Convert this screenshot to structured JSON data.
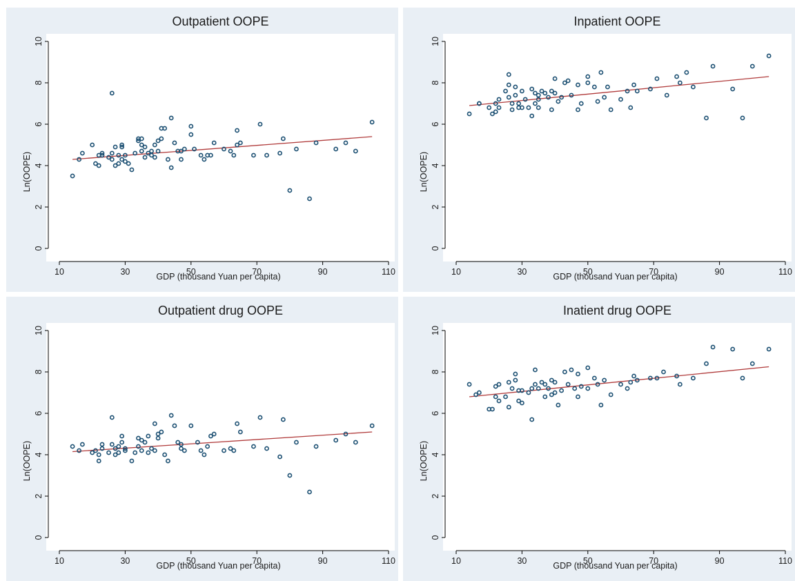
{
  "colors": {
    "panel_background": "#e9eff5",
    "plot_background": "#ffffff",
    "marker": "#1b4f72",
    "fit_line": "#b03a3a"
  },
  "chart_data": [
    {
      "type": "scatter",
      "title": "Outpatient OOPE",
      "xlabel": "GDP (thousand Yuan per capita)",
      "ylabel": "Ln(OOPE)",
      "xlim": [
        10,
        110
      ],
      "ylim": [
        0,
        10
      ],
      "xticks": [
        10,
        30,
        50,
        70,
        90,
        110
      ],
      "yticks": [
        0,
        2,
        4,
        6,
        8,
        10
      ],
      "grid": false,
      "fit_line": {
        "x": [
          14,
          105
        ],
        "y": [
          4.3,
          5.4
        ]
      },
      "points": [
        [
          14,
          3.5
        ],
        [
          16,
          4.3
        ],
        [
          17,
          4.6
        ],
        [
          20,
          5.0
        ],
        [
          21,
          4.1
        ],
        [
          22,
          4.0
        ],
        [
          22,
          4.5
        ],
        [
          23,
          4.5
        ],
        [
          23,
          4.6
        ],
        [
          25,
          4.4
        ],
        [
          26,
          4.3
        ],
        [
          26,
          4.6
        ],
        [
          26,
          7.5
        ],
        [
          27,
          4.0
        ],
        [
          27,
          4.9
        ],
        [
          28,
          4.1
        ],
        [
          28,
          4.5
        ],
        [
          29,
          4.3
        ],
        [
          29,
          4.9
        ],
        [
          29,
          5.0
        ],
        [
          30,
          4.5
        ],
        [
          30,
          4.2
        ],
        [
          31,
          4.1
        ],
        [
          32,
          3.8
        ],
        [
          33,
          4.6
        ],
        [
          34,
          5.3
        ],
        [
          34,
          5.2
        ],
        [
          35,
          4.7
        ],
        [
          35,
          5.0
        ],
        [
          35,
          5.3
        ],
        [
          36,
          4.4
        ],
        [
          36,
          4.9
        ],
        [
          37,
          4.6
        ],
        [
          38,
          4.5
        ],
        [
          38,
          4.7
        ],
        [
          39,
          4.4
        ],
        [
          39,
          5.0
        ],
        [
          40,
          5.2
        ],
        [
          40,
          4.7
        ],
        [
          41,
          5.8
        ],
        [
          41,
          5.3
        ],
        [
          42,
          5.8
        ],
        [
          43,
          4.3
        ],
        [
          44,
          3.9
        ],
        [
          44,
          6.3
        ],
        [
          45,
          5.1
        ],
        [
          46,
          4.7
        ],
        [
          47,
          4.3
        ],
        [
          47,
          4.7
        ],
        [
          48,
          4.8
        ],
        [
          50,
          5.5
        ],
        [
          50,
          5.9
        ],
        [
          51,
          4.8
        ],
        [
          53,
          4.5
        ],
        [
          54,
          4.3
        ],
        [
          55,
          4.5
        ],
        [
          56,
          4.5
        ],
        [
          57,
          5.1
        ],
        [
          60,
          4.8
        ],
        [
          62,
          4.7
        ],
        [
          63,
          4.5
        ],
        [
          64,
          5.0
        ],
        [
          64,
          5.7
        ],
        [
          65,
          5.1
        ],
        [
          69,
          4.5
        ],
        [
          71,
          6.0
        ],
        [
          73,
          4.5
        ],
        [
          77,
          4.6
        ],
        [
          78,
          5.3
        ],
        [
          80,
          2.8
        ],
        [
          82,
          4.8
        ],
        [
          86,
          2.4
        ],
        [
          88,
          5.1
        ],
        [
          94,
          4.8
        ],
        [
          97,
          5.1
        ],
        [
          100,
          4.7
        ],
        [
          105,
          6.1
        ]
      ]
    },
    {
      "type": "scatter",
      "title": "Inpatient OOPE",
      "xlabel": "GDP (thousand Yuan per capita)",
      "ylabel": "Ln(OOPE)",
      "xlim": [
        10,
        110
      ],
      "ylim": [
        0,
        10
      ],
      "xticks": [
        10,
        30,
        50,
        70,
        90,
        110
      ],
      "yticks": [
        0,
        2,
        4,
        6,
        8,
        10
      ],
      "grid": false,
      "fit_line": {
        "x": [
          14,
          105
        ],
        "y": [
          6.9,
          8.3
        ]
      },
      "points": [
        [
          14,
          6.5
        ],
        [
          17,
          7.0
        ],
        [
          17,
          7.0
        ],
        [
          20,
          6.8
        ],
        [
          21,
          6.5
        ],
        [
          22,
          7.0
        ],
        [
          22,
          6.6
        ],
        [
          23,
          7.2
        ],
        [
          23,
          6.8
        ],
        [
          25,
          7.6
        ],
        [
          26,
          7.9
        ],
        [
          26,
          8.4
        ],
        [
          26,
          7.3
        ],
        [
          27,
          7.0
        ],
        [
          27,
          6.7
        ],
        [
          28,
          7.4
        ],
        [
          28,
          7.8
        ],
        [
          29,
          7.0
        ],
        [
          29,
          6.8
        ],
        [
          30,
          7.6
        ],
        [
          30,
          6.8
        ],
        [
          31,
          7.2
        ],
        [
          32,
          6.8
        ],
        [
          33,
          7.7
        ],
        [
          33,
          6.4
        ],
        [
          34,
          7.0
        ],
        [
          34,
          7.5
        ],
        [
          35,
          7.4
        ],
        [
          35,
          7.2
        ],
        [
          35,
          6.8
        ],
        [
          36,
          7.6
        ],
        [
          37,
          7.5
        ],
        [
          38,
          7.3
        ],
        [
          39,
          6.7
        ],
        [
          39,
          7.6
        ],
        [
          40,
          8.2
        ],
        [
          40,
          7.5
        ],
        [
          41,
          7.1
        ],
        [
          42,
          7.3
        ],
        [
          43,
          8.0
        ],
        [
          44,
          8.1
        ],
        [
          45,
          7.4
        ],
        [
          47,
          7.9
        ],
        [
          47,
          6.7
        ],
        [
          48,
          7.0
        ],
        [
          50,
          8.3
        ],
        [
          50,
          8.0
        ],
        [
          52,
          7.8
        ],
        [
          53,
          7.1
        ],
        [
          54,
          8.5
        ],
        [
          55,
          7.3
        ],
        [
          56,
          7.8
        ],
        [
          57,
          6.7
        ],
        [
          60,
          7.2
        ],
        [
          62,
          7.6
        ],
        [
          63,
          6.8
        ],
        [
          64,
          7.9
        ],
        [
          65,
          7.6
        ],
        [
          69,
          7.7
        ],
        [
          71,
          8.2
        ],
        [
          74,
          7.4
        ],
        [
          77,
          8.3
        ],
        [
          78,
          8.0
        ],
        [
          80,
          8.5
        ],
        [
          82,
          7.8
        ],
        [
          86,
          6.3
        ],
        [
          88,
          8.8
        ],
        [
          94,
          7.7
        ],
        [
          97,
          6.3
        ],
        [
          100,
          8.8
        ],
        [
          105,
          9.3
        ]
      ]
    },
    {
      "type": "scatter",
      "title": "Outpatient drug OOPE",
      "xlabel": "GDP (thousand Yuan per capita)",
      "ylabel": "Ln(OOPE)",
      "xlim": [
        10,
        110
      ],
      "ylim": [
        0,
        10
      ],
      "xticks": [
        10,
        30,
        50,
        70,
        90,
        110
      ],
      "yticks": [
        0,
        2,
        4,
        6,
        8,
        10
      ],
      "grid": false,
      "fit_line": {
        "x": [
          14,
          105
        ],
        "y": [
          4.15,
          5.1
        ]
      },
      "points": [
        [
          14,
          4.4
        ],
        [
          16,
          4.2
        ],
        [
          17,
          4.5
        ],
        [
          20,
          4.1
        ],
        [
          21,
          4.2
        ],
        [
          22,
          3.7
        ],
        [
          22,
          4.0
        ],
        [
          23,
          4.3
        ],
        [
          23,
          4.5
        ],
        [
          25,
          4.1
        ],
        [
          26,
          4.5
        ],
        [
          26,
          5.8
        ],
        [
          27,
          4.3
        ],
        [
          27,
          4.0
        ],
        [
          28,
          4.4
        ],
        [
          28,
          4.1
        ],
        [
          29,
          4.6
        ],
        [
          29,
          4.9
        ],
        [
          30,
          4.2
        ],
        [
          30,
          4.3
        ],
        [
          32,
          3.7
        ],
        [
          33,
          4.1
        ],
        [
          34,
          4.8
        ],
        [
          34,
          4.4
        ],
        [
          35,
          4.7
        ],
        [
          35,
          4.2
        ],
        [
          36,
          4.6
        ],
        [
          37,
          4.9
        ],
        [
          37,
          4.1
        ],
        [
          38,
          4.3
        ],
        [
          39,
          4.2
        ],
        [
          39,
          5.5
        ],
        [
          40,
          5.0
        ],
        [
          40,
          4.8
        ],
        [
          41,
          5.1
        ],
        [
          42,
          4.0
        ],
        [
          43,
          3.7
        ],
        [
          44,
          5.9
        ],
        [
          45,
          5.4
        ],
        [
          46,
          4.6
        ],
        [
          47,
          4.3
        ],
        [
          47,
          4.5
        ],
        [
          48,
          4.2
        ],
        [
          50,
          5.4
        ],
        [
          52,
          4.6
        ],
        [
          53,
          4.2
        ],
        [
          54,
          4.0
        ],
        [
          55,
          4.4
        ],
        [
          56,
          4.9
        ],
        [
          57,
          5.0
        ],
        [
          60,
          4.2
        ],
        [
          62,
          4.3
        ],
        [
          63,
          4.2
        ],
        [
          64,
          5.5
        ],
        [
          65,
          5.1
        ],
        [
          69,
          4.4
        ],
        [
          71,
          5.8
        ],
        [
          73,
          4.3
        ],
        [
          77,
          3.9
        ],
        [
          78,
          5.7
        ],
        [
          80,
          3.0
        ],
        [
          82,
          4.6
        ],
        [
          86,
          2.2
        ],
        [
          88,
          4.4
        ],
        [
          94,
          4.7
        ],
        [
          97,
          5.0
        ],
        [
          100,
          4.6
        ],
        [
          105,
          5.4
        ]
      ]
    },
    {
      "type": "scatter",
      "title": "Inatient drug OOPE",
      "xlabel": "GDP (thousand Yuan per capita)",
      "ylabel": "Ln(OOPE)",
      "xlim": [
        10,
        110
      ],
      "ylim": [
        0,
        10
      ],
      "xticks": [
        10,
        30,
        50,
        70,
        90,
        110
      ],
      "yticks": [
        0,
        2,
        4,
        6,
        8,
        10
      ],
      "grid": false,
      "fit_line": {
        "x": [
          14,
          105
        ],
        "y": [
          6.8,
          8.25
        ]
      },
      "points": [
        [
          14,
          7.4
        ],
        [
          16,
          6.9
        ],
        [
          17,
          7.0
        ],
        [
          20,
          6.2
        ],
        [
          21,
          6.2
        ],
        [
          22,
          7.3
        ],
        [
          22,
          6.8
        ],
        [
          23,
          7.4
        ],
        [
          23,
          6.6
        ],
        [
          25,
          6.8
        ],
        [
          26,
          7.5
        ],
        [
          26,
          6.3
        ],
        [
          27,
          7.2
        ],
        [
          28,
          7.6
        ],
        [
          28,
          7.9
        ],
        [
          29,
          7.1
        ],
        [
          29,
          6.6
        ],
        [
          30,
          6.5
        ],
        [
          30,
          7.1
        ],
        [
          32,
          7.0
        ],
        [
          33,
          5.7
        ],
        [
          33,
          7.2
        ],
        [
          34,
          7.4
        ],
        [
          34,
          8.1
        ],
        [
          35,
          7.2
        ],
        [
          36,
          7.5
        ],
        [
          37,
          7.4
        ],
        [
          37,
          6.8
        ],
        [
          38,
          7.2
        ],
        [
          39,
          7.6
        ],
        [
          39,
          6.9
        ],
        [
          40,
          7.5
        ],
        [
          40,
          7.0
        ],
        [
          41,
          6.4
        ],
        [
          42,
          7.1
        ],
        [
          43,
          8.0
        ],
        [
          44,
          7.4
        ],
        [
          45,
          8.1
        ],
        [
          46,
          7.2
        ],
        [
          47,
          7.9
        ],
        [
          47,
          6.8
        ],
        [
          48,
          7.3
        ],
        [
          50,
          8.2
        ],
        [
          50,
          7.2
        ],
        [
          52,
          7.7
        ],
        [
          53,
          7.4
        ],
        [
          54,
          6.4
        ],
        [
          55,
          7.6
        ],
        [
          57,
          6.9
        ],
        [
          60,
          7.4
        ],
        [
          62,
          7.2
        ],
        [
          63,
          7.5
        ],
        [
          64,
          7.8
        ],
        [
          65,
          7.6
        ],
        [
          69,
          7.7
        ],
        [
          71,
          7.7
        ],
        [
          73,
          8.0
        ],
        [
          77,
          7.8
        ],
        [
          78,
          7.4
        ],
        [
          82,
          7.7
        ],
        [
          86,
          8.4
        ],
        [
          88,
          9.2
        ],
        [
          94,
          9.1
        ],
        [
          97,
          7.7
        ],
        [
          100,
          8.4
        ],
        [
          105,
          9.1
        ]
      ]
    }
  ]
}
